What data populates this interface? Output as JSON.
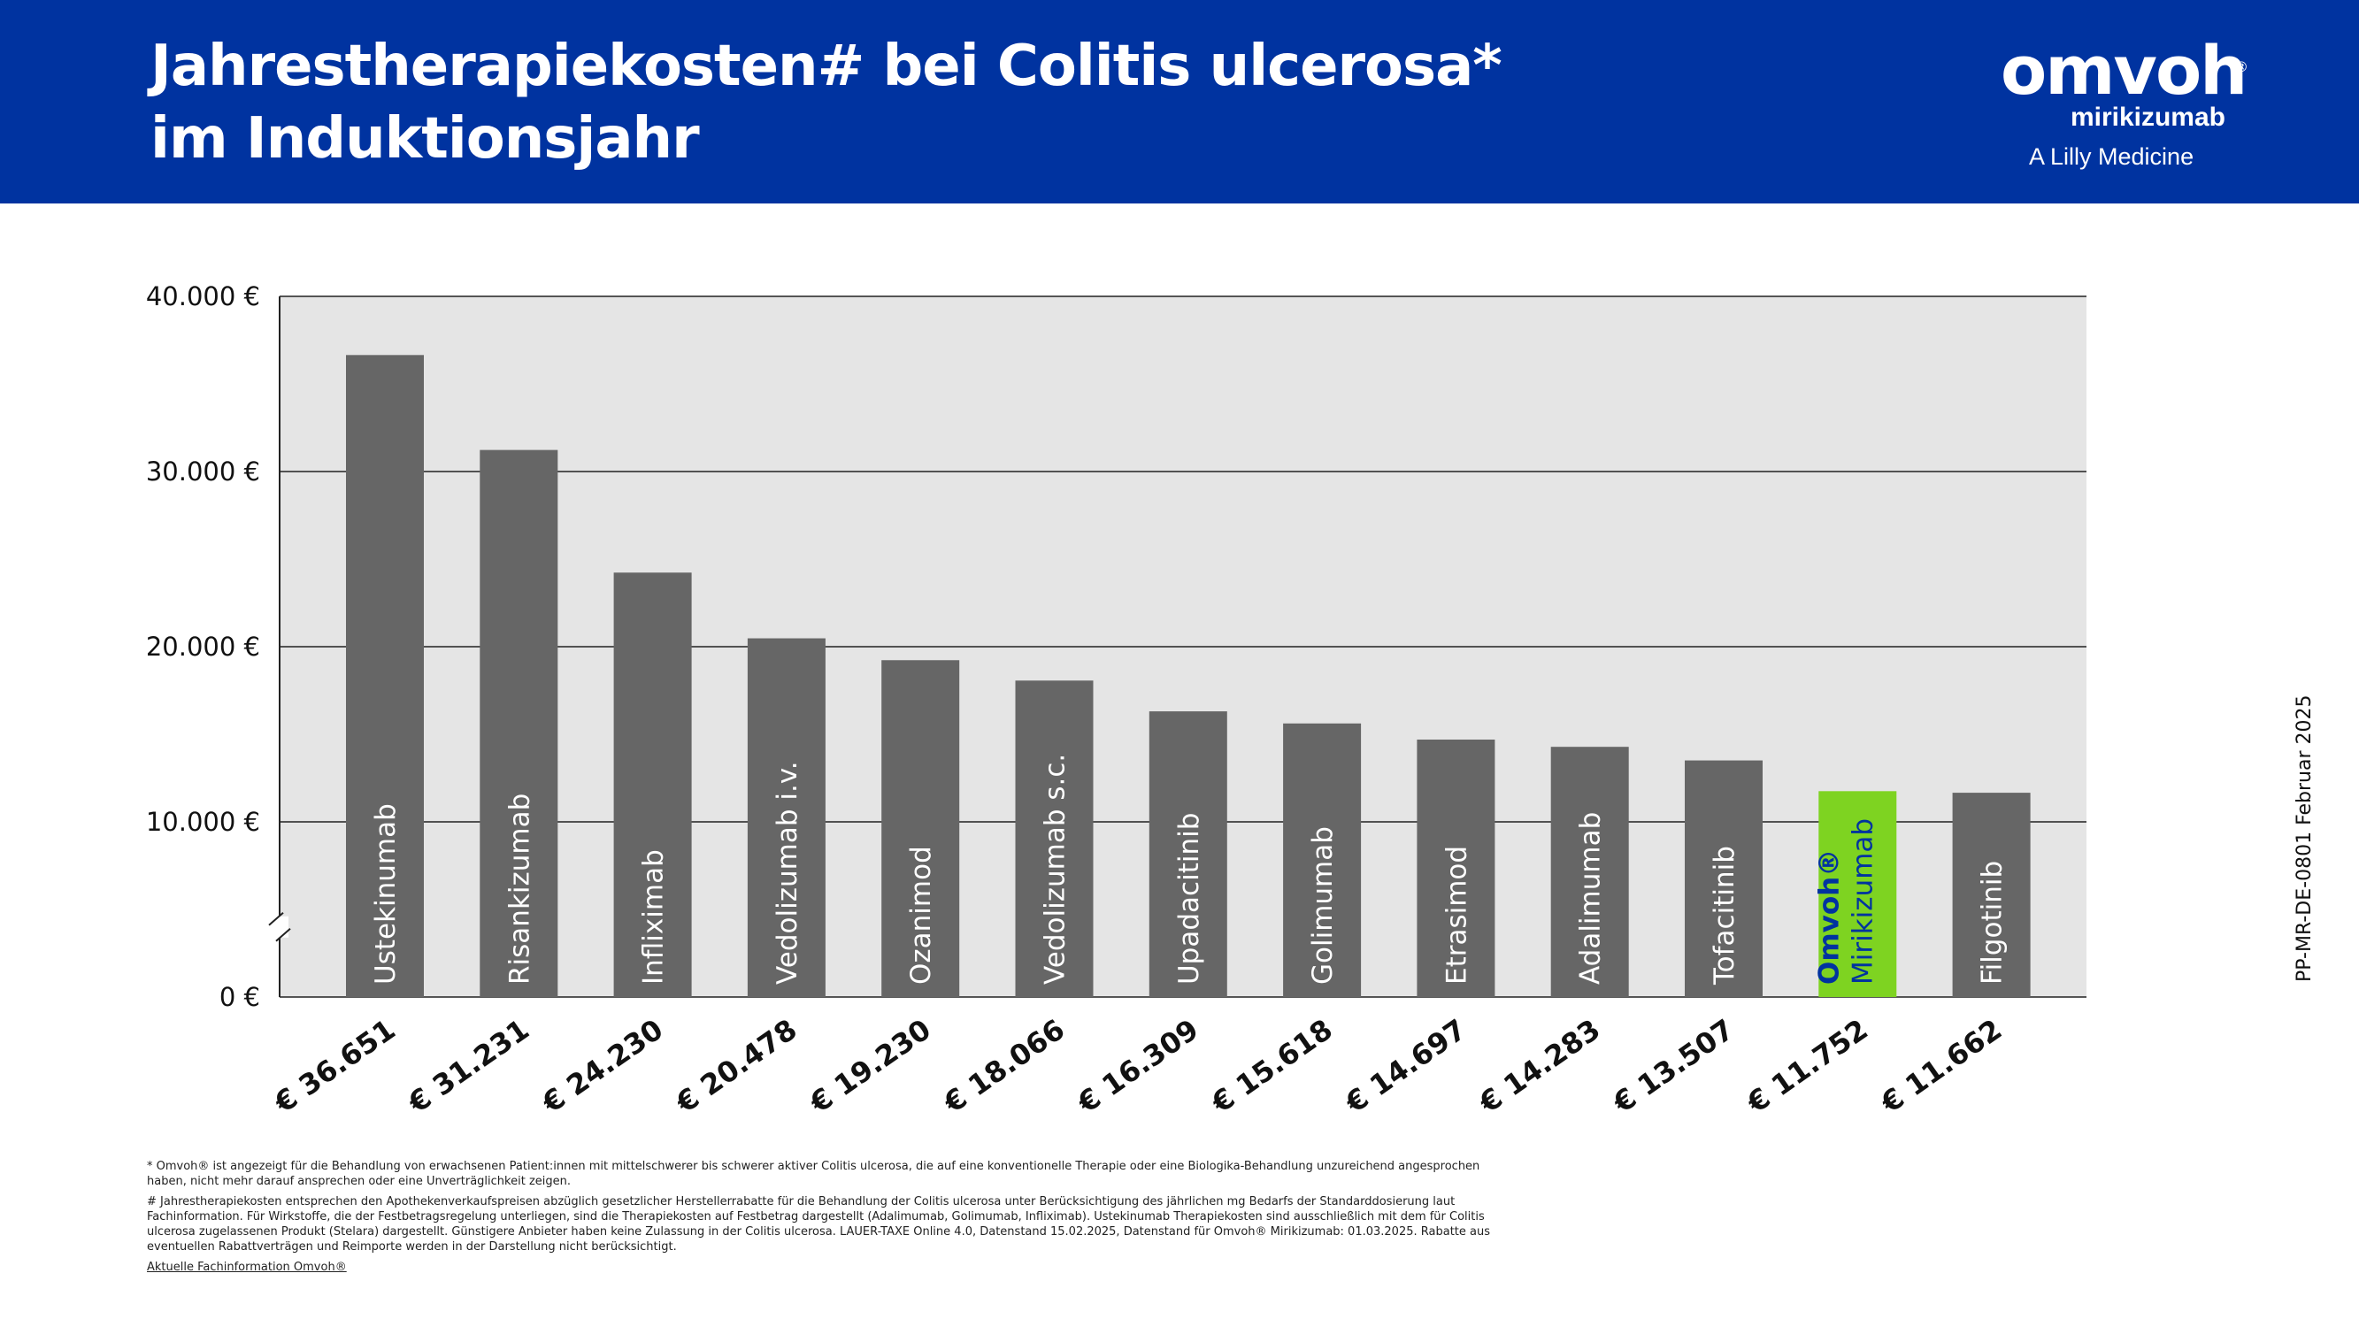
{
  "header": {
    "title_line1": "Jahrestherapiekosten# bei Colitis ulcerosa*",
    "title_line2": "im Induktionsjahr",
    "background_color": "#0033a0"
  },
  "logo": {
    "brand": "omvoh",
    "registered": "®",
    "generic": "mirikizumab",
    "tagline": "A Lilly Medicine"
  },
  "chart_data": {
    "type": "bar",
    "title": "",
    "xlabel": "",
    "ylabel": "",
    "ylim": [
      0,
      40000
    ],
    "y_ticks": [
      0,
      10000,
      20000,
      30000,
      40000
    ],
    "y_tick_labels": [
      "0 €",
      "10.000 €",
      "20.000 €",
      "30.000 €",
      "40.000 €"
    ],
    "grid": true,
    "axis_break": true,
    "categories": [
      "Ustekinumab",
      "Risankizumab",
      "Infliximab",
      "Vedolizumab i.v.",
      "Ozanimod",
      "Vedolizumab s.c.",
      "Upadacitinib",
      "Golimumab",
      "Etrasimod",
      "Adalimumab",
      "Tofacitinib",
      "Mirikizumab",
      "Filgotinib"
    ],
    "values": [
      36651,
      31231,
      24230,
      20478,
      19230,
      18066,
      16309,
      15618,
      14697,
      14283,
      13507,
      11752,
      11662
    ],
    "value_labels": [
      "€ 36.651",
      "€ 31.231",
      "€ 24.230",
      "€ 20.478",
      "€ 19.230",
      "€ 18.066",
      "€ 16.309",
      "€ 15.618",
      "€ 14.697",
      "€ 14.283",
      "€ 13.507",
      "€ 11.752",
      "€ 11.662"
    ],
    "highlight_index": 11,
    "highlight_brand_label": "Omvoh®",
    "colors": {
      "bar": "#666666",
      "highlight_bar": "#7ed321",
      "highlight_brand_text": "#0033a0",
      "plot_background": "#e5e5e5",
      "bar_label_text": "#ffffff"
    }
  },
  "footnotes": {
    "star": "* Omvoh® ist angezeigt für die Behandlung von erwachsenen Patient:innen mit mittelschwerer bis schwerer aktiver Colitis ulcerosa, die auf eine konventionelle Therapie oder eine Biologika-Behandlung unzureichend angesprochen haben, nicht mehr darauf ansprechen oder eine Unverträglichkeit zeigen.",
    "hash": "# Jahrestherapiekosten entsprechen den Apothekenverkaufspreisen abzüglich gesetzlicher Herstellerrabatte für die Behandlung der Colitis ulcerosa unter Berücksichtigung des jährlichen mg Bedarfs der Standarddosierung laut Fachinformation. Für Wirkstoffe, die der Festbetragsregelung unterliegen, sind die Therapiekosten auf Festbetrag dargestellt (Adalimumab, Golimumab, Infliximab). Ustekinumab Therapiekosten sind ausschließlich mit dem für Colitis ulcerosa zugelassenen Produkt (Stelara) dargestellt. Günstigere Anbieter haben keine Zulassung in der Colitis ulcerosa. LAUER-TAXE Online 4.0, Datenstand 15.02.2025, Datenstand für Omvoh® Mirikizumab: 01.03.2025. Rabatte aus eventuellen Rabattverträgen und Reimporte werden in der Darstellung nicht berücksichtigt.",
    "link": "Aktuelle Fachinformation Omvoh®"
  },
  "doc_code": "PP-MR-DE-0801 Februar 2025"
}
